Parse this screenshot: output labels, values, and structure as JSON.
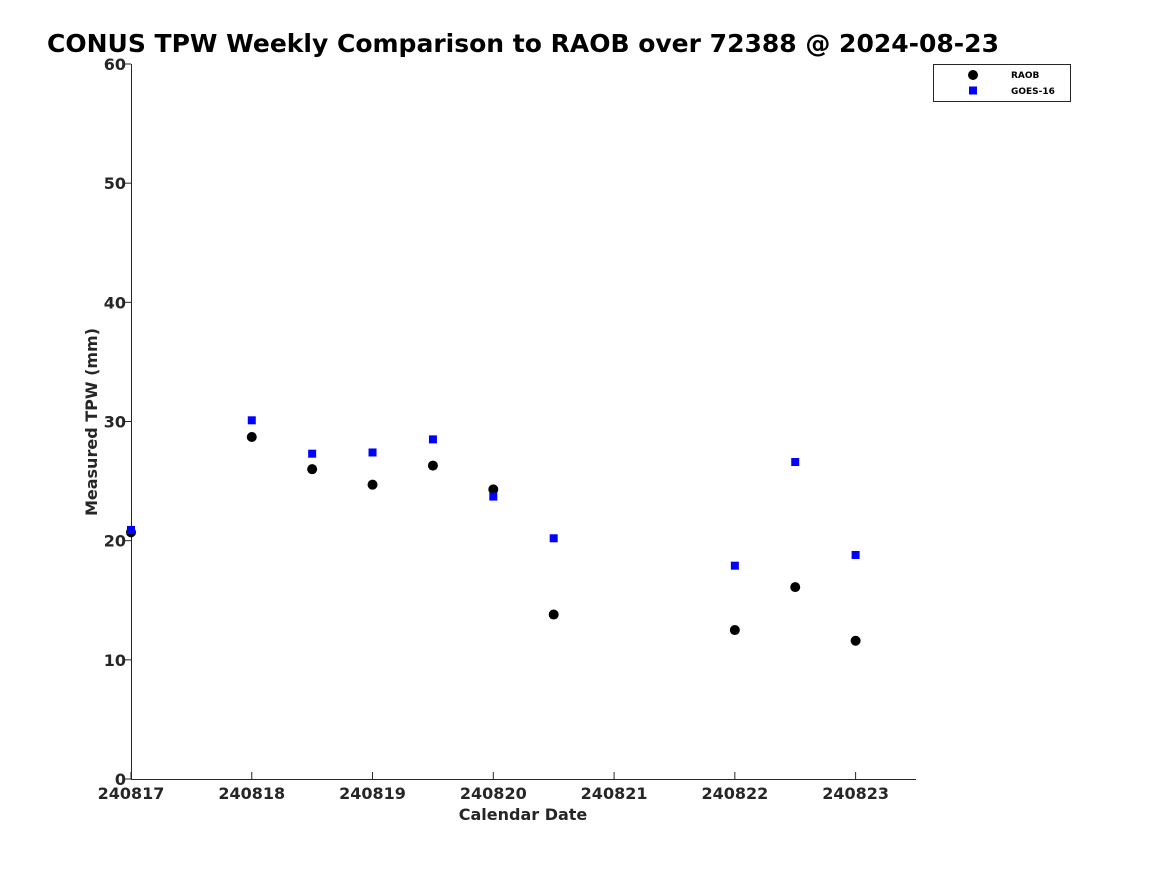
{
  "chart_data": {
    "type": "scatter",
    "title": "CONUS TPW Weekly Comparison to RAOB over 72388 @ 2024-08-23",
    "xlabel": "Calendar Date",
    "ylabel": "Measured TPW (mm)",
    "xlim": [
      "240817",
      "240823.5"
    ],
    "ylim": [
      0,
      60
    ],
    "xticks": [
      "240817",
      "240818",
      "240819",
      "240820",
      "240821",
      "240822",
      "240823"
    ],
    "yticks": [
      "0",
      "10",
      "20",
      "30",
      "40",
      "50",
      "60"
    ],
    "grid": false,
    "legend_position": "top-right",
    "series": [
      {
        "name": "RAOB",
        "marker": "circle",
        "color": "#000000",
        "x": [
          240817.0,
          240818.0,
          240818.5,
          240819.0,
          240819.5,
          240820.0,
          240820.5,
          240822.0,
          240822.5,
          240823.0
        ],
        "y": [
          20.7,
          28.7,
          26.0,
          24.7,
          26.3,
          24.3,
          13.8,
          12.5,
          16.1,
          11.6
        ]
      },
      {
        "name": "GOES-16",
        "marker": "square",
        "color": "#0000ff",
        "x": [
          240817.0,
          240818.0,
          240818.5,
          240819.0,
          240819.5,
          240820.0,
          240820.5,
          240822.0,
          240822.5,
          240823.0
        ],
        "y": [
          20.9,
          30.1,
          27.3,
          27.4,
          28.5,
          23.7,
          20.2,
          17.9,
          26.6,
          18.8
        ]
      }
    ]
  }
}
